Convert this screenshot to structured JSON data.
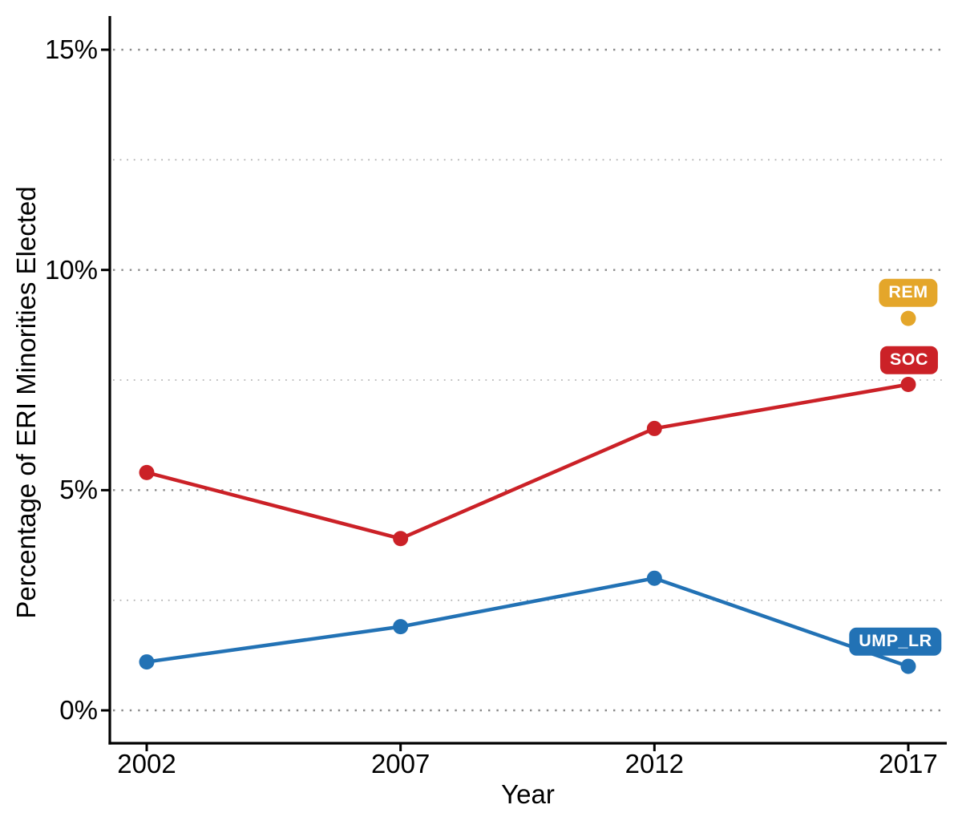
{
  "figure": {
    "x_axis_title": "Year",
    "y_axis_title": "Percentage of ERI Minorities Elected"
  },
  "chart_data": {
    "type": "line",
    "title": "",
    "xlabel": "Year",
    "ylabel": "Percentage of ERI Minorities Elected",
    "x": [
      2002,
      2007,
      2012,
      2017
    ],
    "x_tick_labels": [
      "2002",
      "2007",
      "2012",
      "2017"
    ],
    "ylim": [
      0,
      15.7
    ],
    "y_ticks_major": [
      0,
      5,
      10,
      15
    ],
    "y_tick_labels": [
      "0%",
      "5%",
      "10%",
      "15%"
    ],
    "y_ticks_minor": [
      2.5,
      7.5,
      12.5
    ],
    "grid": "horizontal-dotted",
    "legend_position": "direct-labels-at-line-end",
    "series": [
      {
        "name": "SOC",
        "color": "#CB2127",
        "values": [
          5.4,
          3.9,
          6.4,
          7.4
        ]
      },
      {
        "name": "UMP_LR",
        "color": "#2272B5",
        "values": [
          1.1,
          1.9,
          3.0,
          1.0
        ]
      },
      {
        "name": "REM",
        "color": "#E4A62A",
        "values": [
          null,
          null,
          null,
          8.9
        ]
      }
    ],
    "end_labels": [
      {
        "series": "REM",
        "text": "REM"
      },
      {
        "series": "SOC",
        "text": "SOC"
      },
      {
        "series": "UMP_LR",
        "text": "UMP_LR"
      }
    ]
  },
  "colors": {
    "axis": "#000000",
    "grid_major": "#8A8A8A",
    "grid_minor": "#ABABAB",
    "background": "#FFFFFF"
  }
}
